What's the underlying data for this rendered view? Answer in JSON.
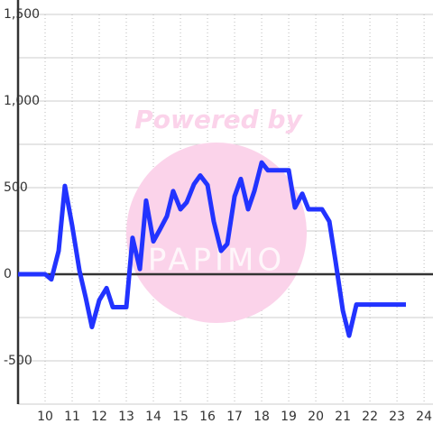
{
  "chart_data": {
    "type": "line",
    "watermark": [
      "Powered by",
      "PAPIMO"
    ],
    "x": [
      9.0,
      10.0,
      10.23,
      10.5,
      10.73,
      11.0,
      11.27,
      11.5,
      11.73,
      12.0,
      12.27,
      12.5,
      13.0,
      13.23,
      13.5,
      13.73,
      14.0,
      14.23,
      14.5,
      14.73,
      15.0,
      15.23,
      15.5,
      15.73,
      16.0,
      16.23,
      16.5,
      16.73,
      17.0,
      17.23,
      17.5,
      17.73,
      18.0,
      18.23,
      19.0,
      19.23,
      19.5,
      19.73,
      20.23,
      20.5,
      20.73,
      21.0,
      21.23,
      21.5,
      23.33
    ],
    "series": [
      {
        "color": "#2233ff",
        "values": [
          0,
          0,
          -30,
          135,
          510,
          280,
          20,
          -135,
          -305,
          -150,
          -80,
          -190,
          -190,
          210,
          30,
          425,
          190,
          255,
          335,
          480,
          375,
          415,
          520,
          570,
          515,
          305,
          135,
          175,
          450,
          550,
          375,
          480,
          645,
          600,
          600,
          385,
          465,
          375,
          375,
          305,
          75,
          -210,
          -355,
          -175,
          -175
        ]
      }
    ],
    "xlim": [
      9,
      24.33
    ],
    "xticks": [
      10,
      11,
      12,
      13,
      14,
      15,
      16,
      17,
      18,
      19,
      20,
      21,
      22,
      23,
      24
    ],
    "ylim": [
      -750,
      1500
    ],
    "yticks": [
      {
        "value": -500,
        "label": "-500"
      },
      0,
      500,
      {
        "value": 1000,
        "label": "1,000"
      },
      {
        "value": 1500,
        "label": "1,500"
      }
    ],
    "y_minor_ticks": [
      -750,
      -250,
      250,
      750,
      1250
    ],
    "grid": true
  }
}
